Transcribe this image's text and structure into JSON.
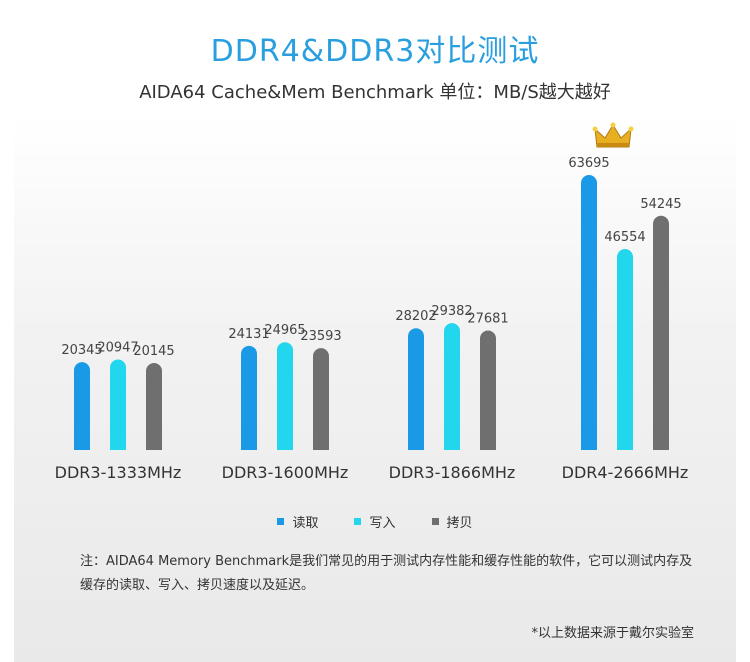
{
  "page": {
    "title": "DDR4&DDR3对比测试",
    "subtitle": "AIDA64 Cache&Mem Benchmark  单位：MB/S越大越好",
    "note": "注：AIDA64 Memory Benchmark是我们常见的用于测试内存性能和缓存性能的软件，它可以测试内存及缓存的读取、写入、拷贝速度以及延迟。",
    "source": "*以上数据来源于戴尔实验室"
  },
  "colors": {
    "read": "#1a9ae6",
    "write": "#22d6ee",
    "copy": "#6f6f6f",
    "title": "#2a9fe0"
  },
  "icons": {
    "winner": "crown-icon"
  },
  "chart_data": {
    "type": "bar",
    "title": "DDR4&DDR3对比测试",
    "categories": [
      "DDR3-1333MHz",
      "DDR3-1600MHz",
      "DDR3-1866MHz",
      "DDR4-2666MHz"
    ],
    "series": [
      {
        "name": "读取",
        "values": [
          20345,
          24131,
          28202,
          63695
        ]
      },
      {
        "name": "写入",
        "values": [
          20947,
          24965,
          29382,
          46554
        ]
      },
      {
        "name": "拷贝",
        "values": [
          20145,
          23593,
          27681,
          54245
        ]
      }
    ],
    "xlabel": "",
    "ylabel": "",
    "ylim": [
      0,
      68000
    ],
    "grid": false,
    "legend": "bottom-center"
  }
}
